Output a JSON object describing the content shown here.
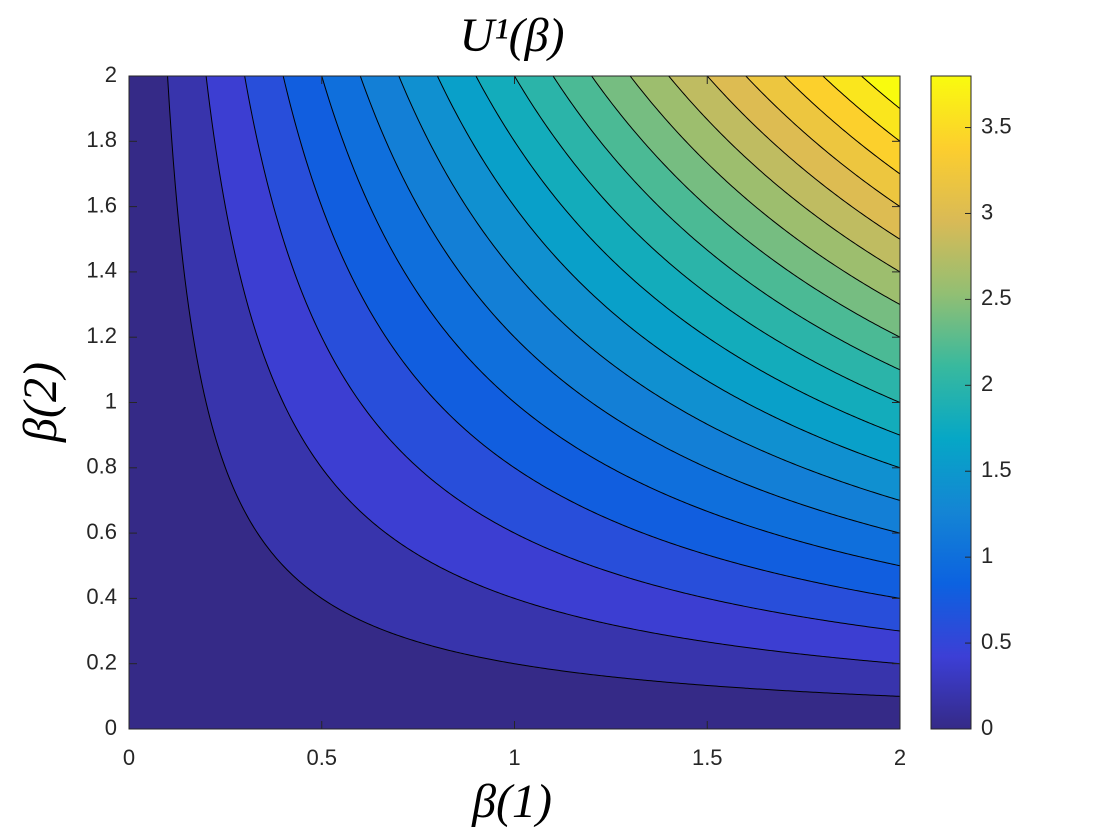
{
  "chart_data": {
    "type": "contourf",
    "title": "U¹(β)",
    "x_label": "β(1)",
    "y_label": "β(2)",
    "x": [
      0,
      0.25,
      0.5,
      0.75,
      1,
      1.25,
      1.5,
      1.75,
      2
    ],
    "y": [
      0,
      0.25,
      0.5,
      0.75,
      1,
      1.25,
      1.5,
      1.75,
      2
    ],
    "z": [
      [
        0,
        0,
        0,
        0,
        0,
        0,
        0,
        0,
        0
      ],
      [
        0,
        0.0625,
        0.125,
        0.1875,
        0.25,
        0.3125,
        0.375,
        0.4375,
        0.5
      ],
      [
        0,
        0.125,
        0.25,
        0.375,
        0.5,
        0.625,
        0.75,
        0.875,
        1
      ],
      [
        0,
        0.1875,
        0.375,
        0.5625,
        0.75,
        0.9375,
        1.125,
        1.3125,
        1.5
      ],
      [
        0,
        0.25,
        0.5,
        0.75,
        1,
        1.25,
        1.5,
        1.75,
        2
      ],
      [
        0,
        0.3125,
        0.625,
        0.9375,
        1.25,
        1.5625,
        1.875,
        2.1875,
        2.5
      ],
      [
        0,
        0.375,
        0.75,
        1.125,
        1.5,
        1.875,
        2.25,
        2.625,
        3
      ],
      [
        0,
        0.4375,
        0.875,
        1.3125,
        1.75,
        2.1875,
        2.625,
        3.0625,
        3.5
      ],
      [
        0,
        0.5,
        1,
        1.5,
        2,
        2.5,
        3,
        3.5,
        4
      ]
    ],
    "levels": [
      0,
      0.2,
      0.4,
      0.6,
      0.8,
      1,
      1.2,
      1.4,
      1.6,
      1.8,
      2,
      2.2,
      2.4,
      2.6,
      2.8,
      3,
      3.2,
      3.4,
      3.6,
      3.8
    ],
    "xlim": [
      0,
      2
    ],
    "xticks": [
      0,
      0.5,
      1,
      1.5,
      2
    ],
    "ylim": [
      0,
      2
    ],
    "yticks": [
      0,
      0.2,
      0.4,
      0.6,
      0.8,
      1,
      1.2,
      1.4,
      1.6,
      1.8,
      2
    ],
    "clim": [
      0,
      3.8
    ],
    "cticks": [
      0,
      0.5,
      1,
      1.5,
      2,
      2.5,
      3,
      3.5
    ],
    "colormap": [
      "#352a87",
      "#3c3fd6",
      "#0c62e0",
      "#1485d4",
      "#06a7c6",
      "#38b99e",
      "#92bf73",
      "#d9ba56",
      "#fcce2e",
      "#f9fb0e"
    ],
    "line_color": "#000000"
  }
}
